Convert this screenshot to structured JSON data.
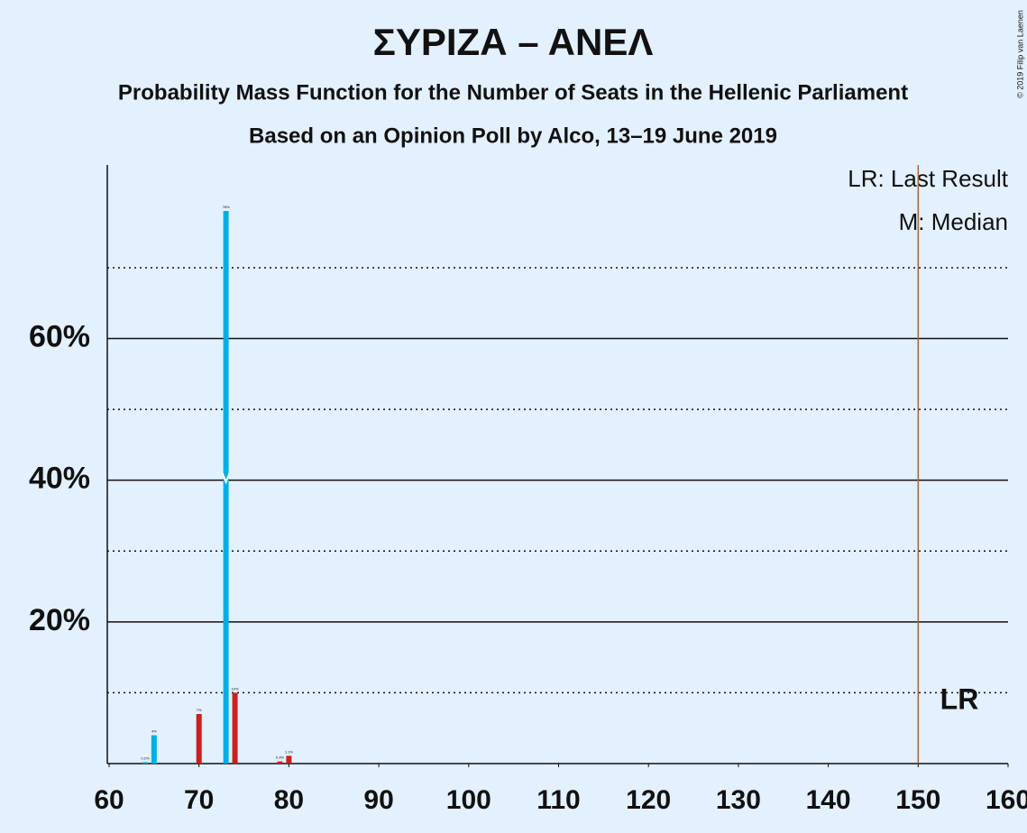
{
  "chart_data": {
    "type": "bar",
    "title": "ΣΥΡΙΖΑ – ΑΝΕΛ",
    "subtitle": "Probability Mass Function for the Number of Seats in the Hellenic Parliament",
    "subtitle2": "Based on an Opinion Poll by Alco, 13–19 June 2019",
    "legend_lr": "LR: Last Result",
    "legend_median": "M: Median",
    "lr_label": "LR",
    "copyright": "© 2019 Filip van Laenen",
    "last_result": 150,
    "median": 73,
    "series": [
      {
        "color": "#00aee8",
        "x": [
          64,
          65,
          73
        ],
        "values": [
          0.2,
          4,
          78
        ],
        "value_labels": [
          "0.2%",
          "4%",
          "78%"
        ]
      },
      {
        "color": "#c8201e",
        "x": [
          70,
          74,
          79,
          80
        ],
        "values": [
          7,
          10,
          0.3,
          1.1
        ],
        "value_labels": [
          "7%",
          "10%",
          "0.3%",
          "1.1%"
        ]
      }
    ],
    "xlim": [
      60,
      160
    ],
    "xticks": [
      60,
      70,
      80,
      90,
      100,
      110,
      120,
      130,
      140,
      150,
      160
    ],
    "ylim": [
      0,
      84.5
    ],
    "yticks": [
      {
        "value": 20,
        "label": "20%"
      },
      {
        "value": 40,
        "label": "40%"
      },
      {
        "value": 60,
        "label": "60%"
      }
    ],
    "minor_gridlines": [
      10,
      30,
      50,
      70
    ],
    "grid": true,
    "lr_color": "#b5622b"
  }
}
